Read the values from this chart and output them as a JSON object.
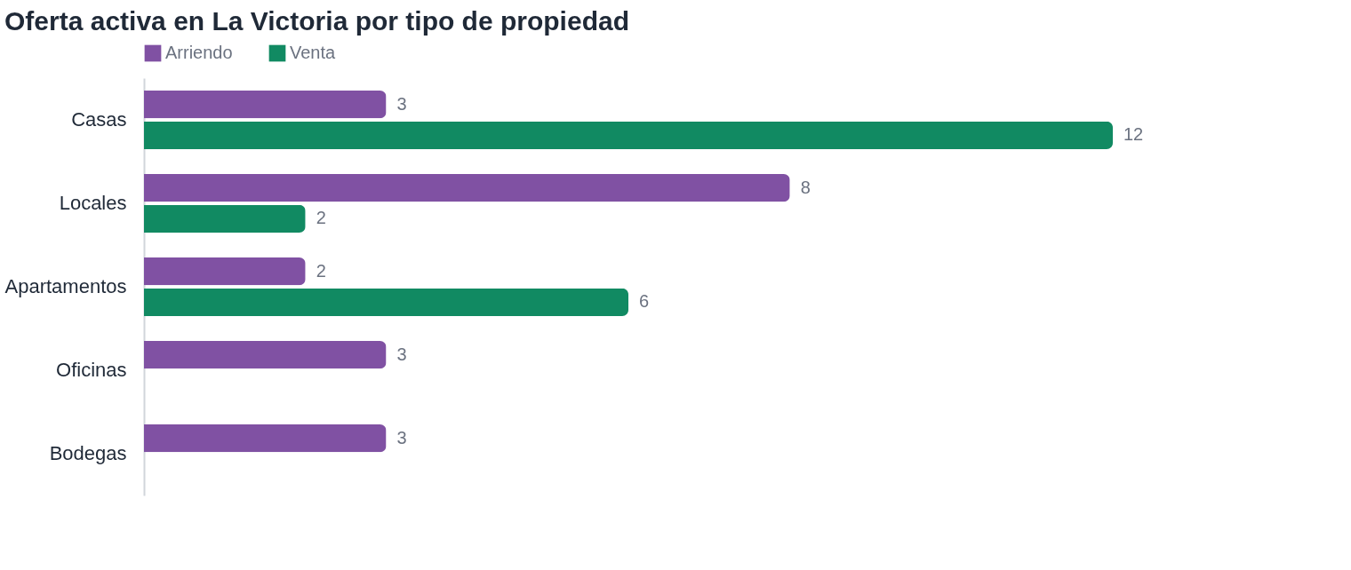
{
  "chart_data": {
    "type": "bar",
    "orientation": "horizontal",
    "title": "Oferta activa en La Victoria por tipo de propiedad",
    "categories": [
      "Casas",
      "Locales",
      "Apartamentos",
      "Oficinas",
      "Bodegas"
    ],
    "series": [
      {
        "name": "Arriendo",
        "color": "#8051a3",
        "values": [
          3,
          8,
          2,
          3,
          3
        ]
      },
      {
        "name": "Venta",
        "color": "#118a62",
        "values": [
          12,
          2,
          6,
          null,
          null
        ]
      }
    ],
    "data_labels": true,
    "legend": "top left"
  }
}
